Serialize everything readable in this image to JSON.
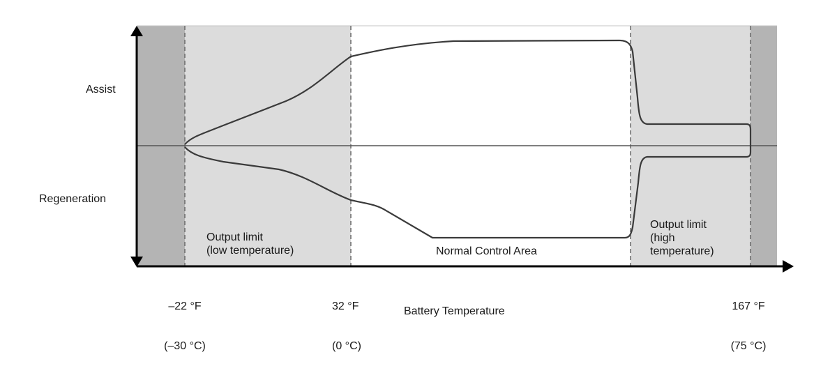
{
  "y_axis": {
    "upper_label": "Assist",
    "lower_label": "Regeneration"
  },
  "x_axis": {
    "title": "Battery Temperature",
    "ticks": [
      {
        "f": "–22 °F",
        "c": "(–30 °C)"
      },
      {
        "f": "32 °F",
        "c": "(0 °C)"
      },
      {
        "f": "167 °F",
        "c": "(75 °C)"
      }
    ]
  },
  "regions": {
    "low_temp": "Output limit\n(low temperature)",
    "normal": "Normal Control Area",
    "high_temp": "Output limit\n(high\ntemperature)"
  },
  "colors": {
    "dark_zone": "#b4b4b4",
    "limit_zone": "#dcdcdc",
    "normal_zone": "#ffffff",
    "curve": "#3a3a3a",
    "axis": "#000000"
  }
}
